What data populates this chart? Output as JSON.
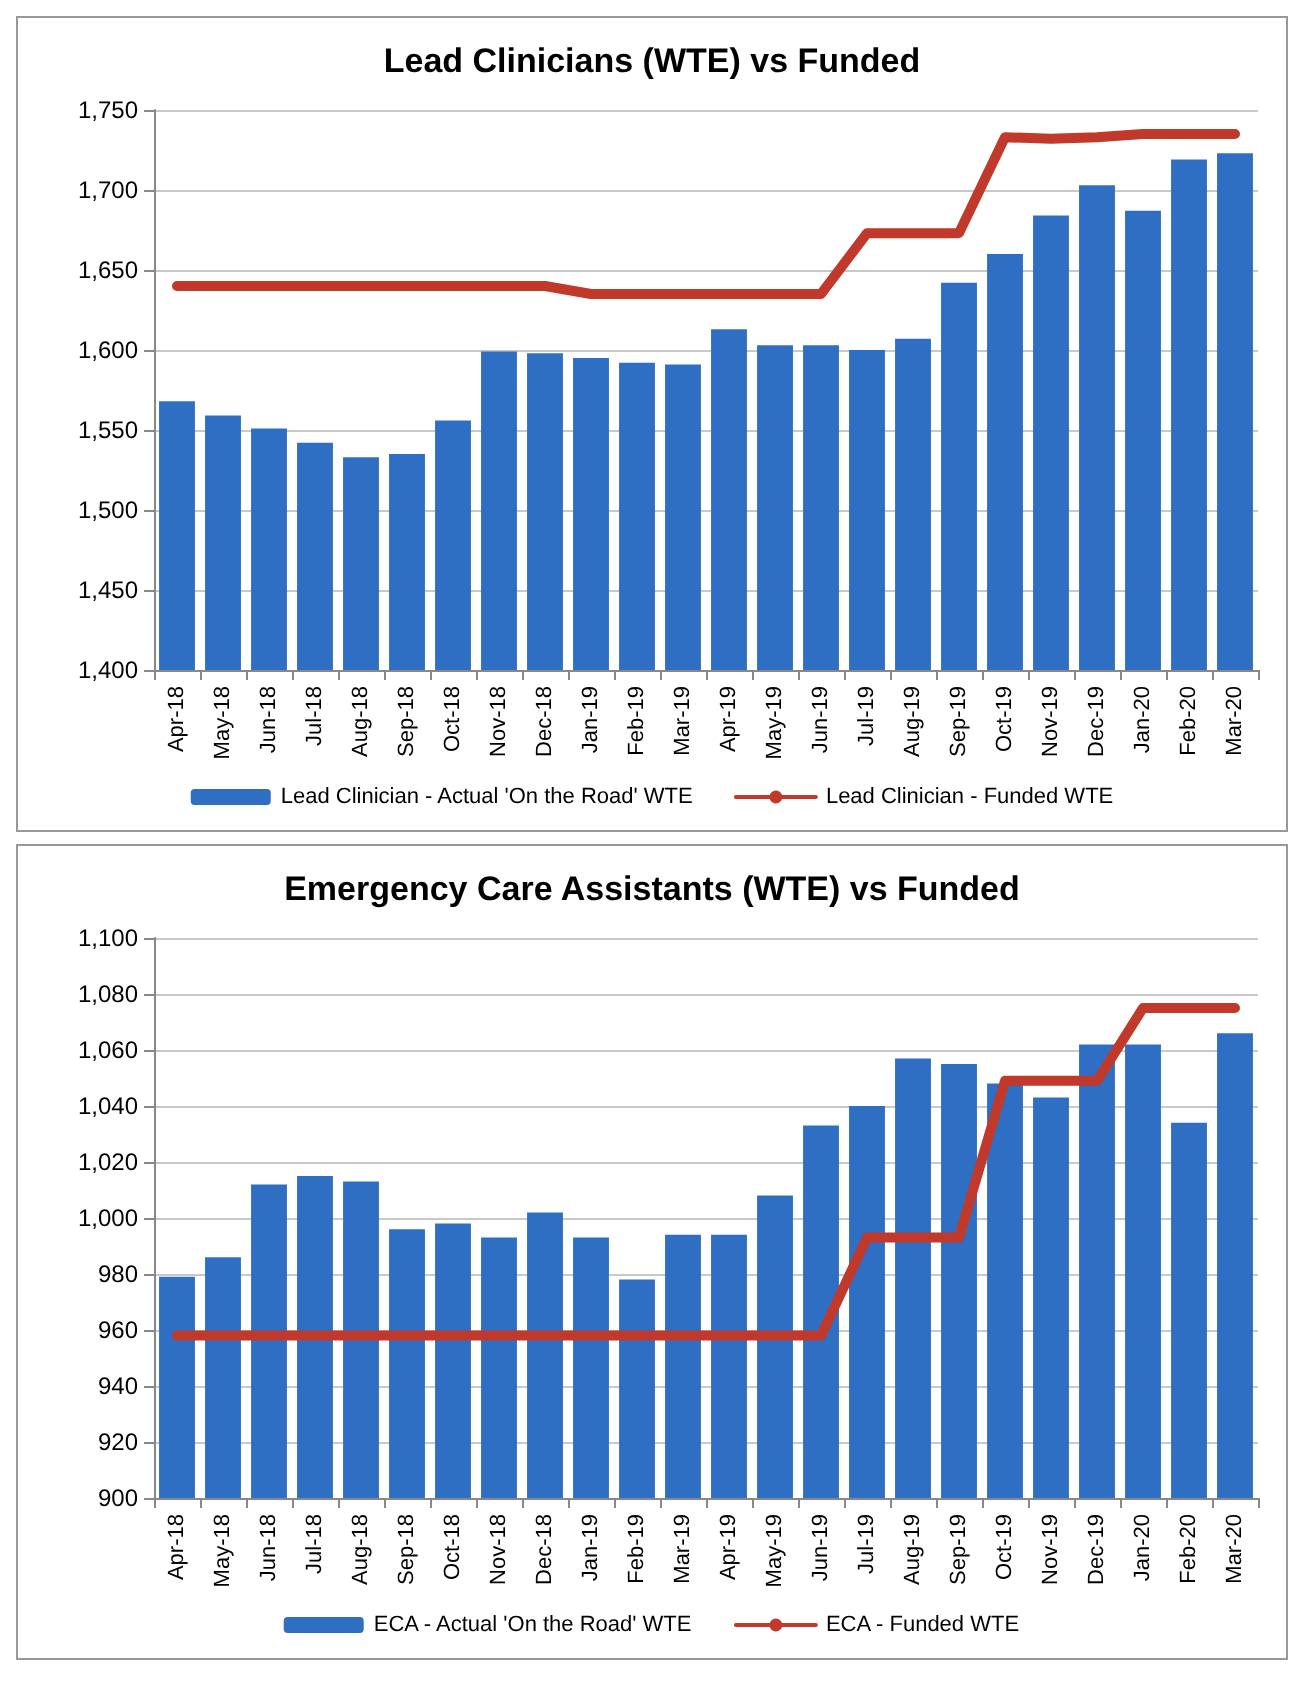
{
  "chart_data": [
    {
      "type": "bar",
      "title": "Lead Clinicians (WTE) vs Funded",
      "categories": [
        "Apr-18",
        "May-18",
        "Jun-18",
        "Jul-18",
        "Aug-18",
        "Sep-18",
        "Oct-18",
        "Nov-18",
        "Dec-18",
        "Jan-19",
        "Feb-19",
        "Mar-19",
        "Apr-19",
        "May-19",
        "Jun-19",
        "Jul-19",
        "Aug-19",
        "Sep-19",
        "Oct-19",
        "Nov-19",
        "Dec-19",
        "Jan-20",
        "Feb-20",
        "Mar-20"
      ],
      "series": [
        {
          "name": "Lead Clinician - Actual 'On the Road' WTE",
          "color": "#2e6fc4",
          "values": [
            1568,
            1559,
            1551,
            1542,
            1533,
            1535,
            1556,
            1599,
            1598,
            1595,
            1592,
            1591,
            1613,
            1603,
            1603,
            1600,
            1607,
            1642,
            1660,
            1684,
            1703,
            1687,
            1719,
            1723
          ]
        },
        {
          "name": "Lead Clinician - Funded WTE",
          "type": "line",
          "color": "#c0392b",
          "values": [
            1640,
            1640,
            1640,
            1640,
            1640,
            1640,
            1640,
            1640,
            1640,
            1635,
            1635,
            1635,
            1635,
            1635,
            1635,
            1673,
            1673,
            1673,
            1733,
            1732,
            1733,
            1735,
            1735,
            1735
          ]
        }
      ],
      "ylim": [
        1400,
        1750
      ],
      "yticks": [
        {
          "value": 1400,
          "label": "1,400"
        },
        {
          "value": 1450,
          "label": "1,450"
        },
        {
          "value": 1500,
          "label": "1,500"
        },
        {
          "value": 1550,
          "label": "1,550"
        },
        {
          "value": 1600,
          "label": "1,600"
        },
        {
          "value": 1650,
          "label": "1,650"
        },
        {
          "value": 1700,
          "label": "1,700"
        },
        {
          "value": 1750,
          "label": "1,750"
        }
      ],
      "grid": "y",
      "legend": "bottom",
      "marker": "none"
    },
    {
      "type": "bar",
      "title": "Emergency Care Assistants (WTE) vs Funded",
      "categories": [
        "Apr-18",
        "May-18",
        "Jun-18",
        "Jul-18",
        "Aug-18",
        "Sep-18",
        "Oct-18",
        "Nov-18",
        "Dec-18",
        "Jan-19",
        "Feb-19",
        "Mar-19",
        "Apr-19",
        "May-19",
        "Jun-19",
        "Jul-19",
        "Aug-19",
        "Sep-19",
        "Oct-19",
        "Nov-19",
        "Dec-19",
        "Jan-20",
        "Feb-20",
        "Mar-20"
      ],
      "series": [
        {
          "name": "ECA - Actual 'On the Road' WTE",
          "color": "#2e6fc4",
          "values": [
            979,
            986,
            1012,
            1015,
            1013,
            996,
            998,
            993,
            1002,
            993,
            978,
            994,
            994,
            1008,
            1033,
            1040,
            1057,
            1055,
            1048,
            1043,
            1062,
            1062,
            1034,
            1066
          ]
        },
        {
          "name": "ECA - Funded WTE",
          "type": "line",
          "color": "#c0392b",
          "values": [
            958,
            958,
            958,
            958,
            958,
            958,
            958,
            958,
            958,
            958,
            958,
            958,
            958,
            958,
            958,
            993,
            993,
            993,
            1049,
            1049,
            1049,
            1075,
            1075,
            1075
          ]
        }
      ],
      "ylim": [
        900,
        1100
      ],
      "yticks": [
        900,
        920,
        940,
        960,
        980,
        {
          "value": 1000,
          "label": "1,000"
        },
        {
          "value": 1020,
          "label": "1,020"
        },
        {
          "value": 1040,
          "label": "1,040"
        },
        {
          "value": 1060,
          "label": "1,060"
        },
        {
          "value": 1080,
          "label": "1,080"
        },
        {
          "value": 1100,
          "label": "1,100"
        }
      ],
      "grid": "y",
      "legend": "bottom",
      "marker": "none"
    }
  ]
}
